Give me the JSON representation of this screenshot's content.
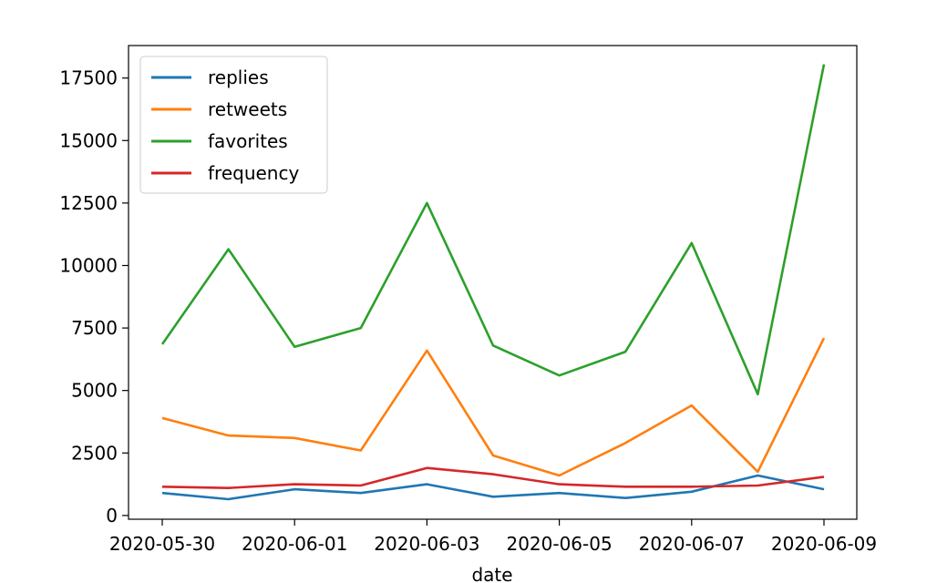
{
  "chart_data": {
    "type": "line",
    "x": [
      "2020-05-30",
      "2020-05-31",
      "2020-06-01",
      "2020-06-02",
      "2020-06-03",
      "2020-06-04",
      "2020-06-05",
      "2020-06-06",
      "2020-06-07",
      "2020-06-08",
      "2020-06-09"
    ],
    "x_tick_labels": [
      "2020-05-30",
      "2020-06-01",
      "2020-06-03",
      "2020-06-05",
      "2020-06-07",
      "2020-06-09"
    ],
    "xlabel": "date",
    "ylabel": "",
    "title": "",
    "ylim": [
      -150,
      18800
    ],
    "y_ticks": [
      0,
      2500,
      5000,
      7500,
      10000,
      12500,
      15000,
      17500
    ],
    "grid": false,
    "legend_position": "upper-left",
    "series": [
      {
        "name": "replies",
        "color": "#1f77b4",
        "values": [
          900,
          650,
          1050,
          900,
          1250,
          750,
          900,
          700,
          950,
          1600,
          1050
        ]
      },
      {
        "name": "retweets",
        "color": "#ff7f0e",
        "values": [
          3900,
          3200,
          3100,
          2600,
          6600,
          2400,
          1600,
          2900,
          4400,
          1750,
          7100
        ]
      },
      {
        "name": "favorites",
        "color": "#2ca02c",
        "values": [
          6850,
          10650,
          6750,
          7500,
          12500,
          6800,
          5600,
          6550,
          10900,
          4850,
          18050
        ]
      },
      {
        "name": "frequency",
        "color": "#d62728",
        "values": [
          1150,
          1100,
          1250,
          1200,
          1900,
          1650,
          1250,
          1150,
          1150,
          1200,
          1550
        ]
      }
    ]
  }
}
